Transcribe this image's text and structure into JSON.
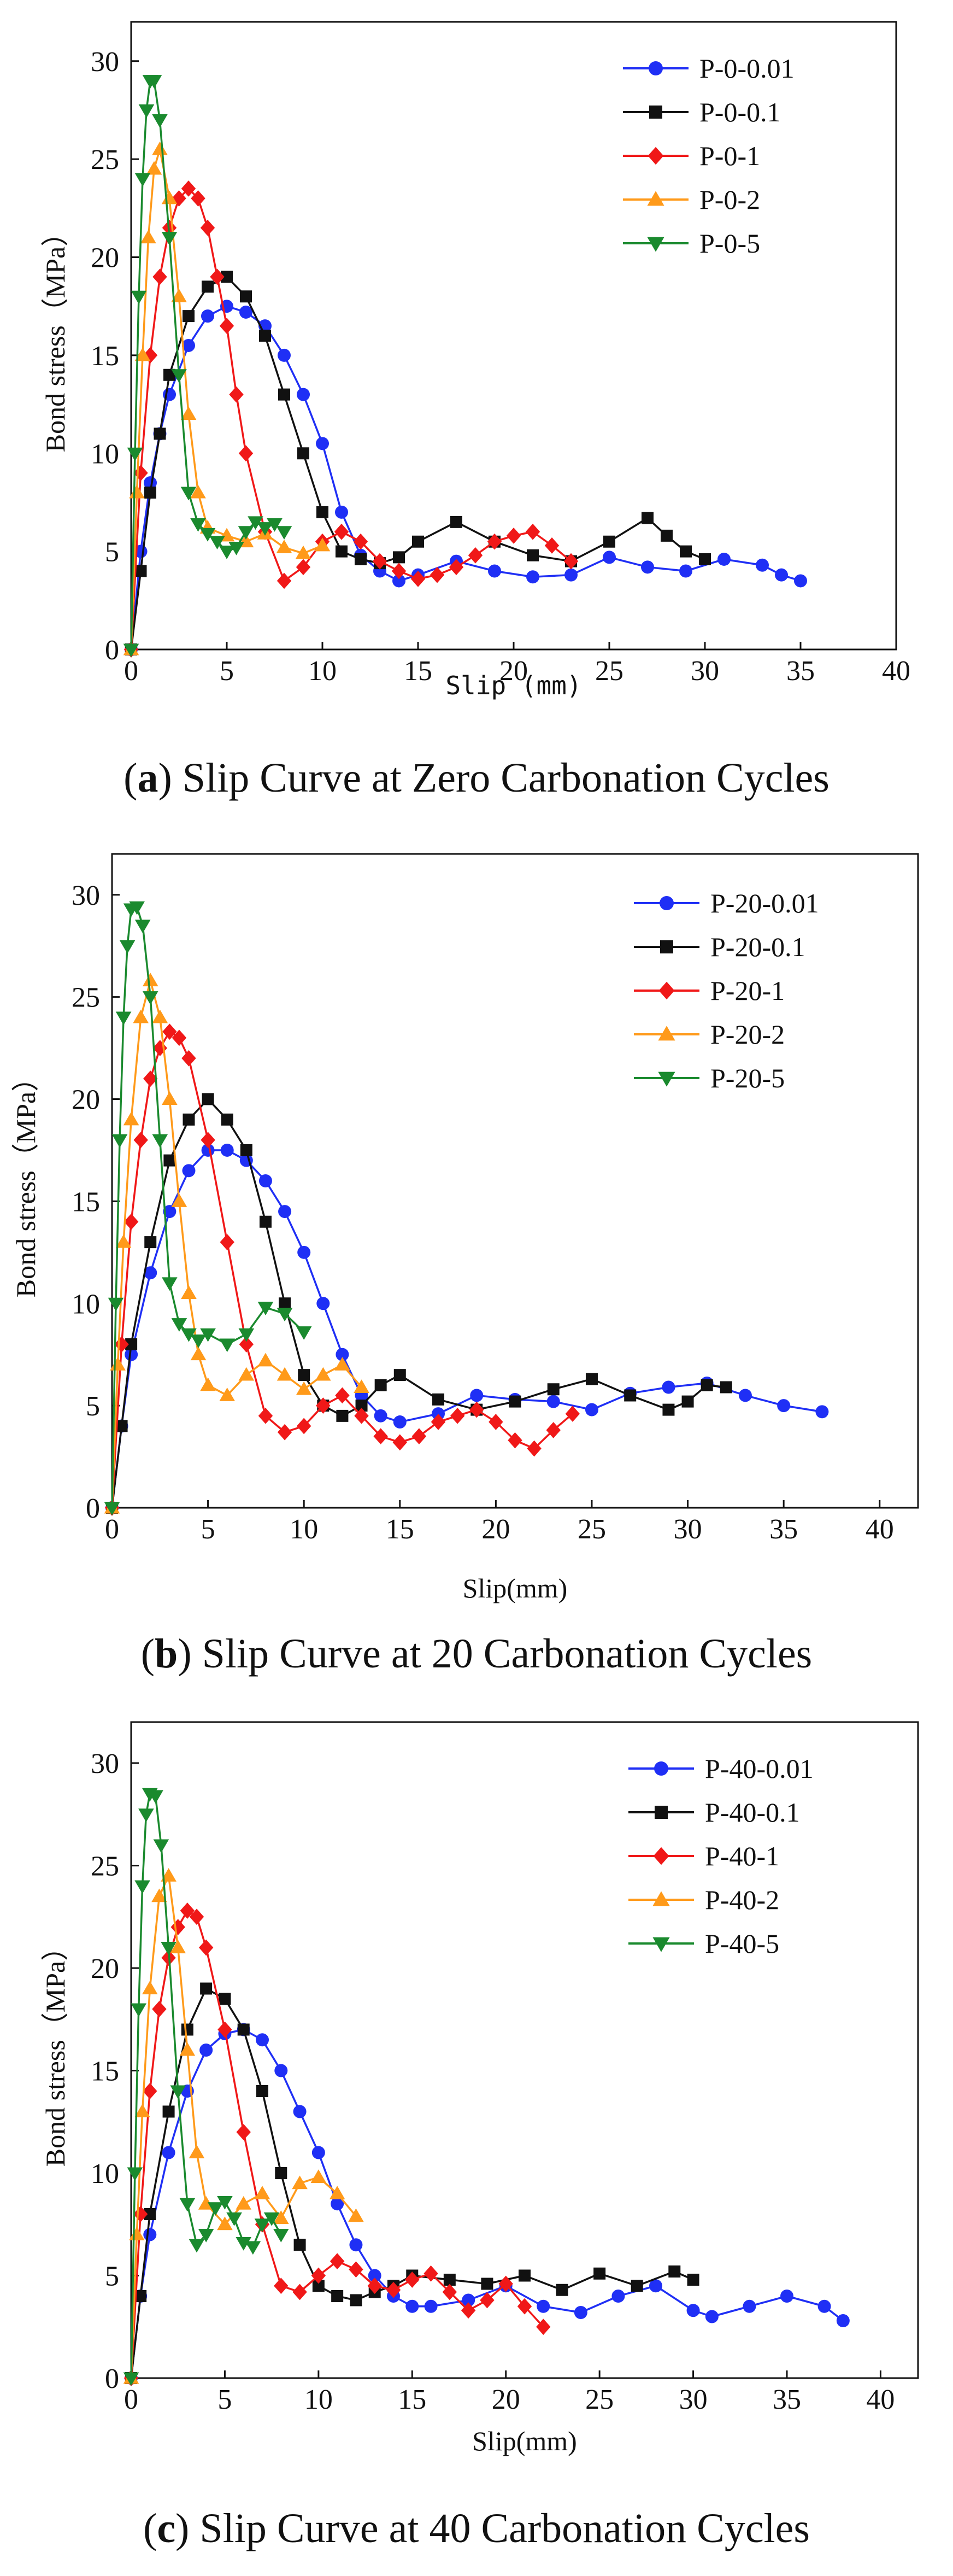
{
  "figure": {
    "captions": [
      {
        "letter": "a",
        "open": "(",
        "close": ")",
        "text": " Slip Curve at Zero Carbonation Cycles"
      },
      {
        "letter": "b",
        "open": "(",
        "close": ")",
        "text": " Slip Curve at 20 Carbonation Cycles"
      },
      {
        "letter": "c",
        "open": "(",
        "close": ")",
        "text": " Slip Curve at 40 Carbonation Cycles"
      }
    ]
  },
  "colors": {
    "blue": "#1f2ff5",
    "black": "#111111",
    "red": "#f01818",
    "orange": "#ff9a1a",
    "green": "#1a8a2e"
  },
  "chart_data": [
    {
      "type": "line",
      "title": "Slip Curve at Zero Carbonation Cycles",
      "xlabel": "Slip (mm)",
      "ylabel": "Bond stress（MPa）",
      "xlim": [
        0,
        40
      ],
      "ylim": [
        0,
        32
      ],
      "xticks": [
        0,
        5,
        10,
        15,
        20,
        25,
        30,
        35,
        40
      ],
      "yticks": [
        0,
        5,
        10,
        15,
        20,
        25,
        30
      ],
      "legend_position": "top-right",
      "series": [
        {
          "name": "P-0-0.01",
          "color": "#1f2ff5",
          "marker": "circle",
          "x": [
            0,
            0.5,
            1,
            1.5,
            2,
            3,
            4,
            5,
            6,
            7,
            8,
            9,
            10,
            11,
            12,
            13,
            14,
            15,
            17,
            19,
            21,
            23,
            25,
            27,
            29,
            31,
            33,
            34,
            35
          ],
          "y": [
            0,
            5,
            8.5,
            11,
            13,
            15.5,
            17,
            17.5,
            17.2,
            16.5,
            15,
            13,
            10.5,
            7,
            4.8,
            4,
            3.5,
            3.8,
            4.5,
            4,
            3.7,
            3.8,
            4.7,
            4.2,
            4,
            4.6,
            4.3,
            3.8,
            3.5
          ]
        },
        {
          "name": "P-0-0.1",
          "color": "#111111",
          "marker": "square",
          "x": [
            0,
            0.5,
            1,
            1.5,
            2,
            3,
            4,
            5,
            6,
            7,
            8,
            9,
            10,
            11,
            12,
            13,
            14,
            15,
            17,
            19,
            21,
            23,
            25,
            27,
            28,
            29,
            30
          ],
          "y": [
            0,
            4,
            8,
            11,
            14,
            17,
            18.5,
            19,
            18,
            16,
            13,
            10,
            7,
            5,
            4.6,
            4.4,
            4.7,
            5.5,
            6.5,
            5.5,
            4.8,
            4.5,
            5.5,
            6.7,
            5.8,
            5,
            4.6
          ]
        },
        {
          "name": "P-0-1",
          "color": "#f01818",
          "marker": "diamond",
          "x": [
            0,
            0.5,
            1,
            1.5,
            2,
            2.5,
            3,
            3.5,
            4,
            4.5,
            5,
            5.5,
            6,
            7,
            8,
            9,
            10,
            11,
            12,
            13,
            14,
            15,
            16,
            17,
            18,
            19,
            20,
            21,
            22,
            23
          ],
          "y": [
            0,
            9,
            15,
            19,
            21.5,
            23,
            23.5,
            23,
            21.5,
            19,
            16.5,
            13,
            10,
            6,
            3.5,
            4.2,
            5.5,
            6,
            5.5,
            4.5,
            4,
            3.6,
            3.8,
            4.2,
            4.8,
            5.5,
            5.8,
            6,
            5.3,
            4.5
          ]
        },
        {
          "name": "P-0-2",
          "color": "#ff9a1a",
          "marker": "triangle-up",
          "x": [
            0,
            0.3,
            0.6,
            0.9,
            1.2,
            1.5,
            2,
            2.5,
            3,
            3.5,
            4,
            5,
            6,
            7,
            8,
            9,
            10
          ],
          "y": [
            0,
            8,
            15,
            21,
            24.5,
            25.5,
            23,
            18,
            12,
            8,
            6.2,
            5.8,
            5.5,
            5.9,
            5.2,
            4.9,
            5.3
          ]
        },
        {
          "name": "P-0-5",
          "color": "#1a8a2e",
          "marker": "triangle-down",
          "x": [
            0,
            0.2,
            0.4,
            0.6,
            0.8,
            1,
            1.2,
            1.5,
            2,
            2.5,
            3,
            3.5,
            4,
            4.5,
            5,
            5.5,
            6,
            6.5,
            7,
            7.5,
            8
          ],
          "y": [
            0,
            10,
            18,
            24,
            27.5,
            29,
            29,
            27,
            21,
            14,
            8,
            6.4,
            5.9,
            5.5,
            5,
            5.2,
            6,
            6.5,
            6.2,
            6.4,
            6
          ]
        }
      ]
    },
    {
      "type": "line",
      "title": "Slip Curve at 20 Carbonation Cycles",
      "xlabel": "Slip(mm)",
      "ylabel": "Bond stress（MPa）",
      "xlim": [
        0,
        42
      ],
      "ylim": [
        0,
        32
      ],
      "xticks": [
        0,
        5,
        10,
        15,
        20,
        25,
        30,
        35,
        40
      ],
      "yticks": [
        0,
        5,
        10,
        15,
        20,
        25,
        30
      ],
      "legend_position": "top-right",
      "series": [
        {
          "name": "P-20-0.01",
          "color": "#1f2ff5",
          "marker": "circle",
          "x": [
            0,
            0.5,
            1,
            2,
            3,
            4,
            5,
            6,
            7,
            8,
            9,
            10,
            11,
            12,
            13,
            14,
            15,
            17,
            19,
            21,
            23,
            25,
            27,
            29,
            31,
            33,
            35,
            37
          ],
          "y": [
            0,
            4,
            7.5,
            11.5,
            14.5,
            16.5,
            17.5,
            17.5,
            17,
            16,
            14.5,
            12.5,
            10,
            7.5,
            5.5,
            4.5,
            4.2,
            4.6,
            5.5,
            5.3,
            5.2,
            4.8,
            5.6,
            5.9,
            6.1,
            5.5,
            5,
            4.7
          ]
        },
        {
          "name": "P-20-0.1",
          "color": "#111111",
          "marker": "square",
          "x": [
            0,
            0.5,
            1,
            2,
            3,
            4,
            5,
            6,
            7,
            8,
            9,
            10,
            11,
            12,
            13,
            14,
            15,
            17,
            19,
            21,
            23,
            25,
            27,
            29,
            30,
            31,
            32
          ],
          "y": [
            0,
            4,
            8,
            13,
            17,
            19,
            20,
            19,
            17.5,
            14,
            10,
            6.5,
            5,
            4.5,
            5,
            6,
            6.5,
            5.3,
            4.8,
            5.2,
            5.8,
            6.3,
            5.5,
            4.8,
            5.2,
            6,
            5.9
          ]
        },
        {
          "name": "P-20-1",
          "color": "#f01818",
          "marker": "diamond",
          "x": [
            0,
            0.5,
            1,
            1.5,
            2,
            2.5,
            3,
            3.5,
            4,
            5,
            6,
            7,
            8,
            9,
            10,
            11,
            12,
            13,
            14,
            15,
            16,
            17,
            18,
            19,
            20,
            21,
            22,
            23,
            24
          ],
          "y": [
            0,
            8,
            14,
            18,
            21,
            22.5,
            23.3,
            23,
            22,
            18,
            13,
            8,
            4.5,
            3.7,
            4,
            5,
            5.5,
            4.5,
            3.5,
            3.2,
            3.5,
            4.2,
            4.5,
            4.8,
            4.2,
            3.3,
            2.9,
            3.8,
            4.6
          ]
        },
        {
          "name": "P-20-2",
          "color": "#ff9a1a",
          "marker": "triangle-up",
          "x": [
            0,
            0.3,
            0.6,
            1,
            1.5,
            2,
            2.5,
            3,
            3.5,
            4,
            4.5,
            5,
            6,
            7,
            8,
            9,
            10,
            11,
            12,
            13
          ],
          "y": [
            0,
            7,
            13,
            19,
            24,
            25.8,
            24,
            20,
            15,
            10.5,
            7.5,
            6,
            5.5,
            6.5,
            7.2,
            6.5,
            5.8,
            6.5,
            7,
            5.9
          ]
        },
        {
          "name": "P-20-5",
          "color": "#1a8a2e",
          "marker": "triangle-down",
          "x": [
            0,
            0.2,
            0.4,
            0.6,
            0.8,
            1,
            1.3,
            1.6,
            2,
            2.5,
            3,
            3.5,
            4,
            4.5,
            5,
            6,
            7,
            8,
            9,
            10
          ],
          "y": [
            0,
            10,
            18,
            24,
            27.5,
            29.3,
            29.4,
            28.5,
            25,
            18,
            11,
            9,
            8.5,
            8.2,
            8.5,
            8,
            8.5,
            9.8,
            9.5,
            8.6
          ]
        }
      ]
    },
    {
      "type": "line",
      "title": "Slip Curve at 40 Carbonation Cycles",
      "xlabel": "Slip(mm)",
      "ylabel": "Bond stress（MPa）",
      "xlim": [
        0,
        42
      ],
      "ylim": [
        0,
        32
      ],
      "xticks": [
        0,
        5,
        10,
        15,
        20,
        25,
        30,
        35,
        40
      ],
      "yticks": [
        0,
        5,
        10,
        15,
        20,
        25,
        30
      ],
      "legend_position": "top-right",
      "series": [
        {
          "name": "P-40-0.01",
          "color": "#1f2ff5",
          "marker": "circle",
          "x": [
            0,
            0.5,
            1,
            2,
            3,
            4,
            5,
            6,
            7,
            8,
            9,
            10,
            11,
            12,
            13,
            14,
            15,
            16,
            18,
            20,
            22,
            24,
            26,
            28,
            30,
            31,
            33,
            35,
            37,
            38
          ],
          "y": [
            0,
            4,
            7,
            11,
            14,
            16,
            16.8,
            17,
            16.5,
            15,
            13,
            11,
            8.5,
            6.5,
            5,
            4,
            3.5,
            3.5,
            3.8,
            4.5,
            3.5,
            3.2,
            4,
            4.5,
            3.3,
            3,
            3.5,
            4,
            3.5,
            2.8
          ]
        },
        {
          "name": "P-40-0.1",
          "color": "#111111",
          "marker": "square",
          "x": [
            0,
            0.5,
            1,
            2,
            3,
            4,
            5,
            6,
            7,
            8,
            9,
            10,
            11,
            12,
            13,
            14,
            15,
            17,
            19,
            21,
            23,
            25,
            27,
            29,
            30
          ],
          "y": [
            0,
            4,
            8,
            13,
            17,
            19,
            18.5,
            17,
            14,
            10,
            6.5,
            4.5,
            4,
            3.8,
            4.2,
            4.5,
            5,
            4.8,
            4.6,
            5,
            4.3,
            5.1,
            4.5,
            5.2,
            4.8
          ]
        },
        {
          "name": "P-40-1",
          "color": "#f01818",
          "marker": "diamond",
          "x": [
            0,
            0.5,
            1,
            1.5,
            2,
            2.5,
            3,
            3.5,
            4,
            5,
            6,
            7,
            8,
            9,
            10,
            11,
            12,
            13,
            14,
            15,
            16,
            17,
            18,
            19,
            20,
            21,
            22
          ],
          "y": [
            0,
            8,
            14,
            18,
            20.5,
            22,
            22.8,
            22.5,
            21,
            17,
            12,
            7.5,
            4.5,
            4.2,
            5,
            5.7,
            5.3,
            4.5,
            4.3,
            4.8,
            5.1,
            4.2,
            3.3,
            3.8,
            4.6,
            3.5,
            2.5
          ]
        },
        {
          "name": "P-40-2",
          "color": "#ff9a1a",
          "marker": "triangle-up",
          "x": [
            0,
            0.3,
            0.6,
            1,
            1.5,
            2,
            2.5,
            3,
            3.5,
            4,
            5,
            6,
            7,
            8,
            9,
            10,
            11,
            12
          ],
          "y": [
            0,
            7,
            13,
            19,
            23.5,
            24.5,
            21,
            16,
            11,
            8.5,
            7.5,
            8.5,
            9,
            7.8,
            9.5,
            9.8,
            9,
            7.9
          ]
        },
        {
          "name": "P-40-5",
          "color": "#1a8a2e",
          "marker": "triangle-down",
          "x": [
            0,
            0.2,
            0.4,
            0.6,
            0.8,
            1,
            1.3,
            1.6,
            2,
            2.5,
            3,
            3.5,
            4,
            4.5,
            5,
            5.5,
            6,
            6.5,
            7,
            7.5,
            8
          ],
          "y": [
            0,
            10,
            18,
            24,
            27.5,
            28.5,
            28.4,
            26,
            21,
            14,
            8.5,
            6.5,
            7,
            8.3,
            8.6,
            7.8,
            6.6,
            6.4,
            7.5,
            7.8,
            7
          ]
        }
      ]
    }
  ]
}
